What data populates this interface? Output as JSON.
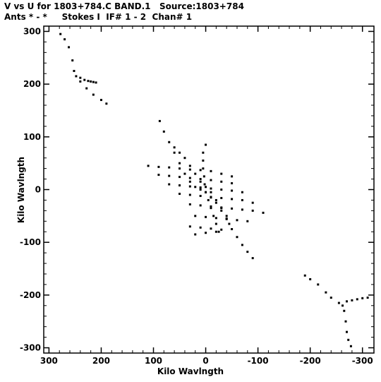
{
  "title_line1": "V vs U for 1803+784.C BAND.1   Source:1803+784",
  "title_line2": "Ants * - *     Stokes I  IF# 1 - 2  Chan# 1",
  "chart_data": {
    "type": "scatter",
    "title": "V vs U for 1803+784.C BAND.1   Source:1803+784",
    "subtitle": "Ants * - *     Stokes I  IF# 1 - 2  Chan# 1",
    "xlabel": "Kilo Wavlngth",
    "ylabel": "Kilo Wavlngth",
    "xlim": [
      310,
      -322
    ],
    "ylim": [
      -310,
      310
    ],
    "x_reversed": true,
    "x_ticks": [
      300,
      200,
      100,
      0,
      -100,
      -200,
      -300
    ],
    "x_tick_labels": [
      "300",
      "200",
      "100",
      "0",
      "-100",
      "-200",
      "-300"
    ],
    "y_ticks": [
      300,
      200,
      100,
      0,
      -100,
      -200,
      -300
    ],
    "y_tick_labels": [
      "300",
      "200",
      "100",
      "0",
      "-100",
      "-200",
      "-300"
    ],
    "grid": false,
    "legend": "none",
    "marker_color": "#000000",
    "series": [
      {
        "values": [
          [
            278,
            295
          ],
          [
            270,
            285
          ],
          [
            262,
            270
          ],
          [
            255,
            245
          ],
          [
            252,
            225
          ],
          [
            248,
            215
          ],
          [
            240,
            212
          ],
          [
            232,
            208
          ],
          [
            225,
            206
          ],
          [
            220,
            205
          ],
          [
            215,
            204
          ],
          [
            210,
            203
          ],
          [
            240,
            205
          ],
          [
            228,
            192
          ],
          [
            215,
            180
          ],
          [
            200,
            170
          ],
          [
            190,
            163
          ]
        ]
      },
      {
        "values": [
          [
            -190,
            -163
          ],
          [
            -200,
            -170
          ],
          [
            -215,
            -180
          ],
          [
            -230,
            -195
          ],
          [
            -240,
            -205
          ],
          [
            -255,
            -215
          ],
          [
            -262,
            -220
          ],
          [
            -270,
            -212
          ],
          [
            -280,
            -210
          ],
          [
            -290,
            -208
          ],
          [
            -300,
            -206
          ],
          [
            -310,
            -205
          ],
          [
            -265,
            -230
          ],
          [
            -268,
            -250
          ],
          [
            -270,
            -270
          ],
          [
            -273,
            -285
          ],
          [
            -278,
            -297
          ]
        ]
      },
      {
        "values": [
          [
            88,
            130
          ],
          [
            80,
            110
          ],
          [
            70,
            90
          ],
          [
            60,
            70
          ],
          [
            50,
            50
          ],
          [
            40,
            30
          ],
          [
            30,
            15
          ],
          [
            20,
            5
          ],
          [
            10,
            0
          ],
          [
            0,
            -5
          ],
          [
            -10,
            -15
          ],
          [
            -20,
            -25
          ],
          [
            -30,
            -40
          ],
          [
            -40,
            -55
          ],
          [
            -50,
            -75
          ],
          [
            -60,
            -90
          ],
          [
            -70,
            -105
          ],
          [
            -80,
            -118
          ],
          [
            -90,
            -130
          ]
        ]
      },
      {
        "values": [
          [
            110,
            45
          ],
          [
            90,
            43
          ],
          [
            70,
            42
          ],
          [
            50,
            40
          ],
          [
            30,
            38
          ],
          [
            10,
            37
          ],
          [
            -10,
            35
          ],
          [
            -30,
            30
          ],
          [
            -50,
            25
          ],
          [
            90,
            28
          ],
          [
            70,
            26
          ],
          [
            50,
            24
          ],
          [
            30,
            22
          ],
          [
            10,
            20
          ],
          [
            -10,
            18
          ],
          [
            -30,
            15
          ],
          [
            -50,
            12
          ],
          [
            70,
            10
          ],
          [
            50,
            8
          ],
          [
            30,
            6
          ],
          [
            10,
            4
          ],
          [
            -10,
            2
          ],
          [
            -30,
            0
          ],
          [
            -50,
            -2
          ],
          [
            -70,
            -5
          ],
          [
            50,
            -8
          ],
          [
            30,
            -10
          ],
          [
            10,
            -12
          ],
          [
            -10,
            -14
          ],
          [
            -30,
            -16
          ],
          [
            -50,
            -18
          ],
          [
            -70,
            -20
          ],
          [
            -90,
            -25
          ],
          [
            30,
            -28
          ],
          [
            10,
            -30
          ],
          [
            -10,
            -32
          ],
          [
            -30,
            -34
          ],
          [
            -50,
            -36
          ],
          [
            -70,
            -38
          ],
          [
            -90,
            -40
          ],
          [
            -110,
            -44
          ],
          [
            20,
            -50
          ],
          [
            0,
            -52
          ],
          [
            -20,
            -54
          ],
          [
            -40,
            -56
          ],
          [
            -60,
            -58
          ],
          [
            -80,
            -60
          ],
          [
            30,
            -70
          ],
          [
            10,
            -72
          ],
          [
            -10,
            -74
          ],
          [
            -30,
            -76
          ],
          [
            20,
            -85
          ],
          [
            0,
            -82
          ],
          [
            -20,
            -80
          ]
        ]
      },
      {
        "values": [
          [
            60,
            80
          ],
          [
            50,
            70
          ],
          [
            40,
            60
          ],
          [
            30,
            45
          ],
          [
            20,
            30
          ],
          [
            10,
            15
          ],
          [
            0,
            5
          ],
          [
            -10,
            -5
          ],
          [
            -20,
            -20
          ],
          [
            -30,
            -35
          ],
          [
            -40,
            -50
          ],
          [
            -45,
            -65
          ],
          [
            0,
            85
          ],
          [
            5,
            70
          ],
          [
            5,
            55
          ],
          [
            5,
            40
          ],
          [
            3,
            25
          ],
          [
            2,
            10
          ],
          [
            0,
            -5
          ],
          [
            -5,
            -20
          ],
          [
            -10,
            -35
          ],
          [
            -15,
            -50
          ],
          [
            -20,
            -65
          ],
          [
            -25,
            -80
          ]
        ]
      }
    ]
  }
}
